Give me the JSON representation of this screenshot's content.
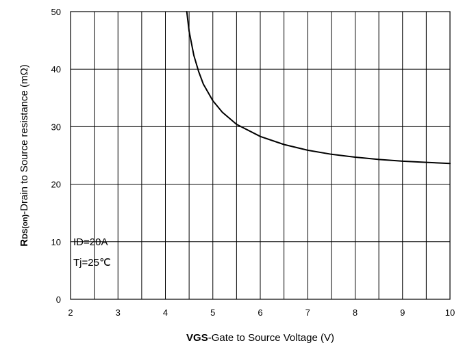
{
  "chart_data": {
    "type": "line",
    "xlabel_bold": "VGS",
    "xlabel_rest": "-Gate to Source Voltage (V)",
    "ylabel_main": "R",
    "ylabel_sub": "DS(on)",
    "ylabel_rest": "-Drain to Source resistance (mΩ)",
    "xlim": [
      2,
      10
    ],
    "ylim": [
      0,
      50
    ],
    "xticks": [
      2,
      3,
      4,
      5,
      6,
      7,
      8,
      9,
      10
    ],
    "yticks": [
      0,
      10,
      20,
      30,
      40,
      50
    ],
    "x_minor_step": 0.5,
    "grid": true,
    "annotations": [
      "ID=20A",
      "Tj=25℃"
    ],
    "series": [
      {
        "color": "#000000",
        "points": [
          [
            4.45,
            50
          ],
          [
            4.5,
            46.6
          ],
          [
            4.6,
            42.4
          ],
          [
            4.7,
            39.6
          ],
          [
            4.8,
            37.4
          ],
          [
            5.0,
            34.5
          ],
          [
            5.2,
            32.5
          ],
          [
            5.5,
            30.4
          ],
          [
            6.0,
            28.3
          ],
          [
            6.5,
            26.9
          ],
          [
            7.0,
            25.9
          ],
          [
            7.5,
            25.2
          ],
          [
            8.0,
            24.7
          ],
          [
            8.5,
            24.3
          ],
          [
            9.0,
            24.0
          ],
          [
            9.5,
            23.8
          ],
          [
            10.0,
            23.6
          ]
        ]
      }
    ]
  }
}
